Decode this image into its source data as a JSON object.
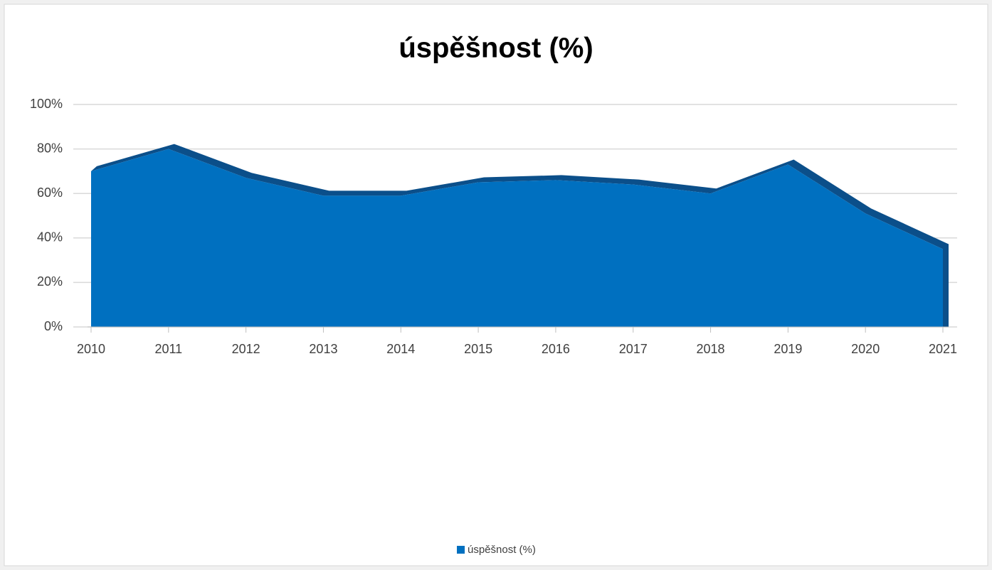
{
  "chart_data": {
    "type": "area",
    "title": "úspěšnost (%)",
    "categories": [
      "2010",
      "2011",
      "2012",
      "2013",
      "2014",
      "2015",
      "2016",
      "2017",
      "2018",
      "2019",
      "2020",
      "2021"
    ],
    "series": [
      {
        "name": "úspěšnost (%)",
        "color": "#0070c0",
        "values": [
          70,
          80,
          67,
          59,
          59,
          65,
          66,
          64,
          60,
          73,
          51,
          35
        ]
      }
    ],
    "ylim": [
      0,
      100
    ],
    "yticks": [
      {
        "value": 0,
        "label": "0%"
      },
      {
        "value": 20,
        "label": "20%"
      },
      {
        "value": 40,
        "label": "40%"
      },
      {
        "value": 60,
        "label": "60%"
      },
      {
        "value": 80,
        "label": "80%"
      },
      {
        "value": 100,
        "label": "100%"
      }
    ],
    "grid": true,
    "legend": "bottom"
  }
}
